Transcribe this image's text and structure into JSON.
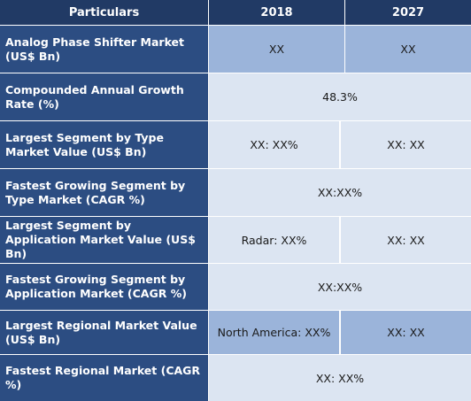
{
  "header": {
    "particulars": "Particulars",
    "year_1": "2018",
    "year_2": "2027"
  },
  "rows": [
    {
      "label": "Analog Phase Shifter Market (US$ Bn)",
      "v2018": "XX",
      "v2027": "XX"
    },
    {
      "label": "Compounded Annual Growth Rate (%)",
      "merged": "48.3%"
    },
    {
      "label": "Largest Segment by Type Market Value (US$ Bn)",
      "v2018": "XX: XX%",
      "v2027": "XX: XX"
    },
    {
      "label": "Fastest Growing Segment by Type Market (CAGR %)",
      "merged": "XX:XX%"
    },
    {
      "label": "Largest Segment by Application Market Value (US$ Bn)",
      "v2018": "Radar: XX%",
      "v2027": "XX: XX"
    },
    {
      "label": "Fastest Growing Segment by Application Market (CAGR %)",
      "merged": "XX:XX%"
    },
    {
      "label": "Largest Regional Market Value (US$ Bn)",
      "v2018": "North America: XX%",
      "v2027": "XX: XX"
    },
    {
      "label": "Fastest Regional Market (CAGR %)",
      "merged": "XX: XX%"
    }
  ],
  "colors": {
    "header_bg": "#213a65",
    "label_bg": "#2c4d82",
    "value_dark_bg": "#9bb4da",
    "value_light_bg": "#dce5f2"
  }
}
